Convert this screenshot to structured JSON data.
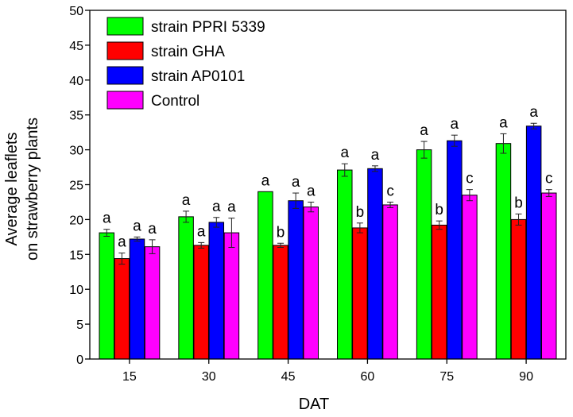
{
  "chart_data": {
    "type": "bar",
    "title": "",
    "xlabel": "DAT",
    "ylabel_lines": [
      "Average leaflets",
      "on strawberry plants"
    ],
    "ylim": [
      0,
      50
    ],
    "yticks": [
      0,
      5,
      10,
      15,
      20,
      25,
      30,
      35,
      40,
      45,
      50
    ],
    "grid": false,
    "legend_position": "top-left",
    "categories": [
      "15",
      "30",
      "45",
      "60",
      "75",
      "90"
    ],
    "series": [
      {
        "name": "strain PPRI 5339",
        "color": "#00ff00",
        "values": [
          18.1,
          20.4,
          24.0,
          27.1,
          30.0,
          30.9
        ],
        "errors": [
          0.5,
          0.8,
          0.0,
          0.9,
          1.2,
          1.4
        ],
        "letters": [
          "a",
          "a",
          "a",
          "a",
          "a",
          "a"
        ]
      },
      {
        "name": "strain GHA",
        "color": "#ff0000",
        "values": [
          14.4,
          16.3,
          16.3,
          18.8,
          19.2,
          20.0
        ],
        "errors": [
          0.8,
          0.4,
          0.3,
          0.7,
          0.6,
          0.8
        ],
        "letters": [
          "a",
          "a",
          "b",
          "b",
          "b",
          "b"
        ]
      },
      {
        "name": "strain AP0101",
        "color": "#0000ff",
        "values": [
          17.2,
          19.6,
          22.7,
          27.3,
          31.3,
          33.4
        ],
        "errors": [
          0.3,
          0.7,
          1.1,
          0.4,
          0.8,
          0.4
        ],
        "letters": [
          "a",
          "a",
          "a",
          "a",
          "a",
          "a"
        ]
      },
      {
        "name": "Control",
        "color": "#ff00ff",
        "values": [
          16.1,
          18.1,
          21.8,
          22.1,
          23.5,
          23.8
        ],
        "errors": [
          1.0,
          2.1,
          0.7,
          0.4,
          0.8,
          0.5
        ],
        "letters": [
          "a",
          "a",
          "a",
          "c",
          "c",
          "c"
        ]
      }
    ]
  }
}
